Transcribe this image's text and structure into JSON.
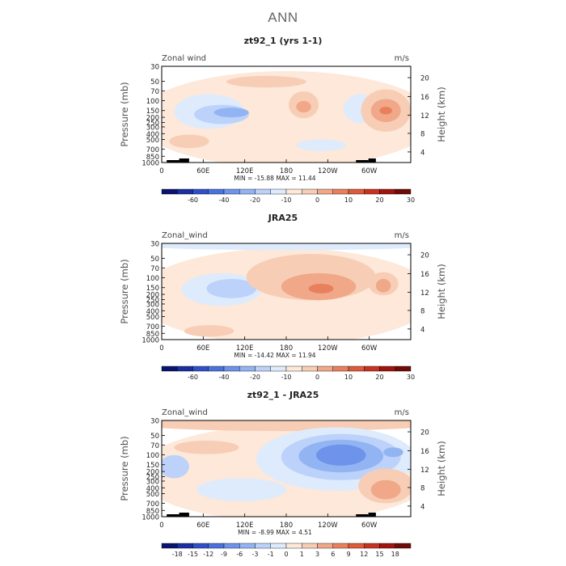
{
  "figure_title": "ANN",
  "colors": {
    "text": "#222222",
    "muted": "#666666",
    "topo": "#000000"
  },
  "chart_data": [
    {
      "type": "heatmap",
      "title": "zt92_1 (yrs 1-1)",
      "left_label": "Zonal wind",
      "units": "m/s",
      "ylabel": "Pressure (mb)",
      "ylabel_right": "Height (km)",
      "x_ticks": [
        "0",
        "60E",
        "120E",
        "180",
        "120W",
        "60W"
      ],
      "y_ticks": [
        "30",
        "50",
        "70",
        "100",
        "150",
        "200",
        "250",
        "300",
        "400",
        "500",
        "700",
        "850",
        "1000"
      ],
      "height_ticks": [
        "4",
        "8",
        "12",
        "16",
        "20"
      ],
      "stats": "MIN = -15.88  MAX =  11.44",
      "min": -15.88,
      "max": 11.44,
      "levels": [
        "-60",
        "-40",
        "-20",
        "-10",
        "0",
        "10",
        "20",
        "30"
      ],
      "colorbar": [
        "#0a1470",
        "#1a2fa0",
        "#2f50c8",
        "#4a72de",
        "#6d93ea",
        "#93b4f3",
        "#bcd2fa",
        "#deebfc",
        "#fde8d9",
        "#f7cdb5",
        "#f0a888",
        "#e8805d",
        "#dd5a3a",
        "#c83220",
        "#a0140e",
        "#700a06"
      ]
    },
    {
      "type": "heatmap",
      "title": "JRA25",
      "left_label": "Zonal_wind",
      "units": "m/s",
      "ylabel": "Pressure (mb)",
      "ylabel_right": "Height (km)",
      "x_ticks": [
        "0",
        "60E",
        "120E",
        "180",
        "120W",
        "60W"
      ],
      "y_ticks": [
        "30",
        "50",
        "70",
        "100",
        "150",
        "200",
        "250",
        "300",
        "400",
        "500",
        "700",
        "850",
        "1000"
      ],
      "height_ticks": [
        "4",
        "8",
        "12",
        "16",
        "20"
      ],
      "stats": "MIN = -14.42  MAX =  11.94",
      "min": -14.42,
      "max": 11.94,
      "levels": [
        "-60",
        "-40",
        "-20",
        "-10",
        "0",
        "10",
        "20",
        "30"
      ],
      "colorbar": [
        "#0a1470",
        "#1a2fa0",
        "#2f50c8",
        "#4a72de",
        "#6d93ea",
        "#93b4f3",
        "#bcd2fa",
        "#deebfc",
        "#fde8d9",
        "#f7cdb5",
        "#f0a888",
        "#e8805d",
        "#dd5a3a",
        "#c83220",
        "#a0140e",
        "#700a06"
      ]
    },
    {
      "type": "heatmap",
      "title": "zt92_1 - JRA25",
      "left_label": "Zonal_wind",
      "units": "m/s",
      "ylabel": "Pressure (mb)",
      "ylabel_right": "Height (km)",
      "x_ticks": [
        "0",
        "60E",
        "120E",
        "180",
        "120W",
        "60W"
      ],
      "y_ticks": [
        "30",
        "50",
        "70",
        "100",
        "150",
        "200",
        "250",
        "300",
        "400",
        "500",
        "700",
        "850",
        "1000"
      ],
      "height_ticks": [
        "4",
        "8",
        "12",
        "16",
        "20"
      ],
      "stats": "MIN = -8.99  MAX =  4.51",
      "min": -8.99,
      "max": 4.51,
      "levels": [
        "-18",
        "-15",
        "-12",
        "-9",
        "-6",
        "-3",
        "-1",
        "0",
        "1",
        "3",
        "6",
        "9",
        "12",
        "15",
        "18"
      ],
      "colorbar": [
        "#0a1470",
        "#1a2fa0",
        "#2f50c8",
        "#4a72de",
        "#6d93ea",
        "#93b4f3",
        "#bcd2fa",
        "#deebfc",
        "#fde8d9",
        "#f7cdb5",
        "#f0a888",
        "#e8805d",
        "#dd5a3a",
        "#c83220",
        "#a0140e",
        "#700a06"
      ]
    }
  ]
}
